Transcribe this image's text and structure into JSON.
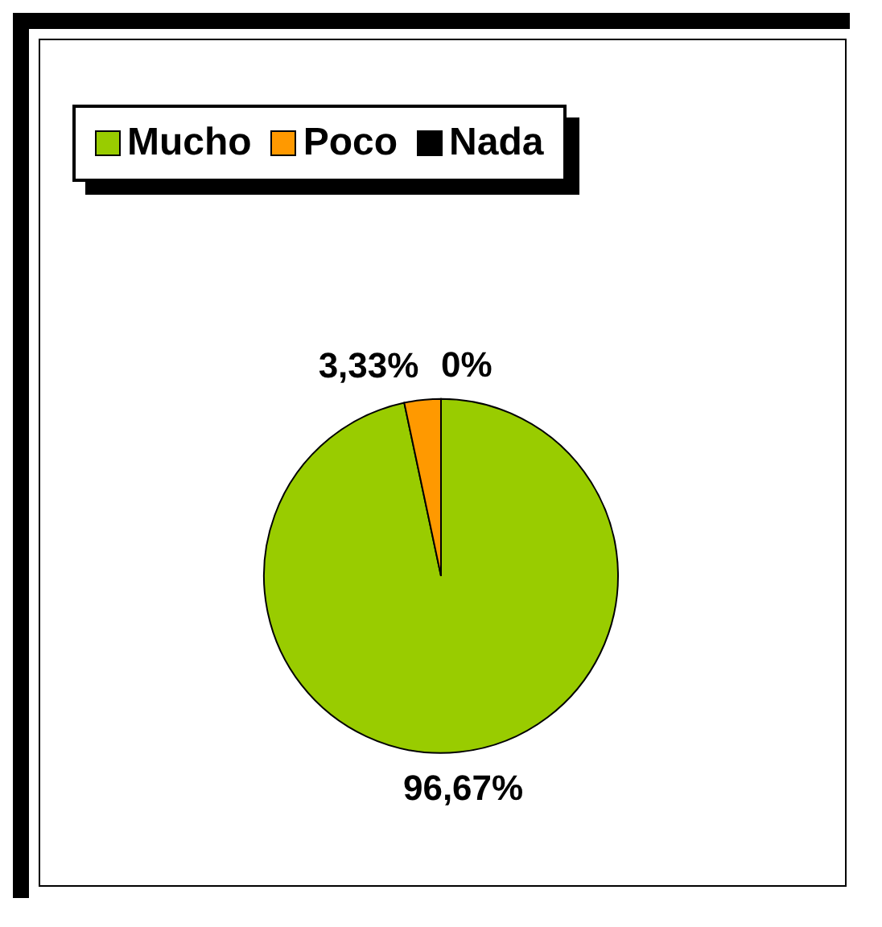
{
  "chart_data": {
    "type": "pie",
    "categories": [
      "Mucho",
      "Poco",
      "Nada"
    ],
    "values": [
      96.67,
      3.33,
      0
    ],
    "colors": [
      "#99cc00",
      "#ff9900",
      "#000000"
    ],
    "value_labels": [
      "96,67%",
      "3,33%",
      "0%"
    ],
    "legend": "top"
  }
}
